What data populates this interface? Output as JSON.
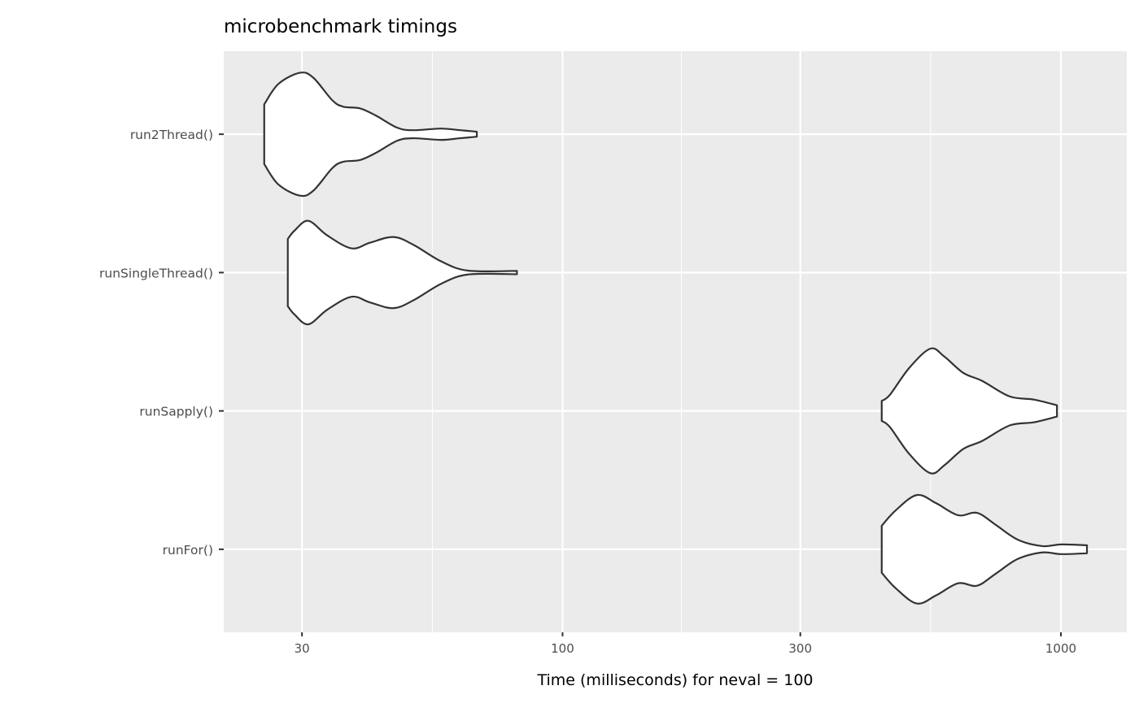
{
  "chart_data": {
    "type": "violin",
    "title": "microbenchmark timings",
    "xlabel": "Time (milliseconds) for neval = 100",
    "ylabel": "",
    "x_scale": "log10",
    "xlim": [
      20.9,
      1356
    ],
    "x_ticks": [
      30,
      100,
      300,
      1000
    ],
    "x_tick_labels": [
      "30",
      "100",
      "300",
      "1000"
    ],
    "x_minor_ticks": [
      54.8,
      173.2,
      547.7
    ],
    "grid": true,
    "panel_background": "#ebebeb",
    "violin_fill": "#ffffff",
    "violin_stroke": "#333333",
    "categories": [
      "run2Thread()",
      "runSingleThread()",
      "runSapply()",
      "runFor()"
    ],
    "series": [
      {
        "category": "run2Thread()",
        "profile_time_halfwidth": [
          [
            25.2,
            0.216
          ],
          [
            26.9,
            0.363
          ],
          [
            29.7,
            0.444
          ],
          [
            31.6,
            0.409
          ],
          [
            34.5,
            0.246
          ],
          [
            36.3,
            0.199
          ],
          [
            39.2,
            0.187
          ],
          [
            42.2,
            0.135
          ],
          [
            46.6,
            0.047
          ],
          [
            50.2,
            0.029
          ],
          [
            57.0,
            0.041
          ],
          [
            62.3,
            0.029
          ],
          [
            67.3,
            0.018
          ]
        ]
      },
      {
        "category": "runSingleThread()",
        "profile_time_halfwidth": [
          [
            28.1,
            0.243
          ],
          [
            29.0,
            0.304
          ],
          [
            30.9,
            0.374
          ],
          [
            33.7,
            0.269
          ],
          [
            37.7,
            0.175
          ],
          [
            41.1,
            0.216
          ],
          [
            45.8,
            0.257
          ],
          [
            50.3,
            0.199
          ],
          [
            57.0,
            0.082
          ],
          [
            64.6,
            0.014
          ],
          [
            81.0,
            0.012
          ]
        ]
      },
      {
        "category": "runSapply()",
        "profile_time_halfwidth": [
          [
            437,
            0.072
          ],
          [
            454,
            0.117
          ],
          [
            496,
            0.31
          ],
          [
            547,
            0.45
          ],
          [
            584,
            0.392
          ],
          [
            637,
            0.275
          ],
          [
            696,
            0.216
          ],
          [
            789,
            0.105
          ],
          [
            883,
            0.082
          ],
          [
            982,
            0.041
          ]
        ]
      },
      {
        "category": "runFor()",
        "profile_time_halfwidth": [
          [
            437,
            0.17
          ],
          [
            466,
            0.281
          ],
          [
            514,
            0.392
          ],
          [
            562,
            0.333
          ],
          [
            622,
            0.246
          ],
          [
            679,
            0.263
          ],
          [
            741,
            0.175
          ],
          [
            819,
            0.07
          ],
          [
            917,
            0.023
          ],
          [
            1001,
            0.035
          ],
          [
            1128,
            0.029
          ]
        ]
      }
    ]
  }
}
